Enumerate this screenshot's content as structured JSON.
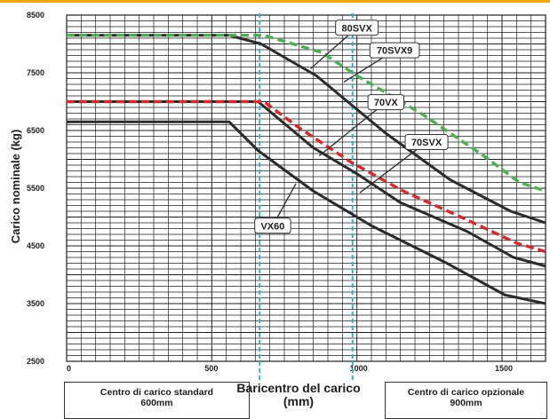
{
  "colors": {
    "top_strip": "#f0a500",
    "grid": "#1e1e1e",
    "solid_series": "#2b2b2b",
    "red_dashed": "#d8282a",
    "green_dashed": "#4caf50",
    "marker_line": "#29a8e0",
    "label_box_stroke": "#333333"
  },
  "chart_data": {
    "type": "line",
    "title": "",
    "ylabel": "Carico nominale (kg)",
    "xlabel": "Baricentro del carico (mm)",
    "xlim": [
      0,
      1650
    ],
    "ylim": [
      2500,
      8500
    ],
    "yticks": [
      2500,
      3500,
      4500,
      5500,
      6500,
      7500,
      8500
    ],
    "xticks": [
      0,
      500,
      1000,
      1500
    ],
    "grid": true,
    "vlines": [
      665,
      985
    ],
    "series": [
      {
        "name": "80SVX",
        "style": "solid",
        "x": [
          0,
          560,
          670,
          860,
          1100,
          1320,
          1530,
          1650
        ],
        "y": [
          8150,
          8150,
          8000,
          7450,
          6450,
          5650,
          5100,
          4900
        ]
      },
      {
        "name": "70SVX9",
        "style": "dashed-green",
        "x": [
          0,
          680,
          880,
          1000,
          1220,
          1440,
          1560,
          1650
        ],
        "y": [
          8150,
          8150,
          7850,
          7450,
          6800,
          6050,
          5600,
          5450
        ]
      },
      {
        "name": "70SVX",
        "style": "dashed-red",
        "x": [
          0,
          680,
          800,
          980,
          1160,
          1380,
          1550,
          1650
        ],
        "y": [
          7000,
          7000,
          6550,
          5950,
          5450,
          4950,
          4550,
          4400
        ]
      },
      {
        "name": "70VX",
        "style": "solid",
        "x": [
          0,
          660,
          850,
          1000,
          1150,
          1380,
          1540,
          1650
        ],
        "y": [
          7000,
          7000,
          6200,
          5750,
          5250,
          4750,
          4300,
          4150
        ]
      },
      {
        "name": "VX60",
        "style": "solid",
        "x": [
          0,
          560,
          660,
          850,
          1050,
          1310,
          1510,
          1650
        ],
        "y": [
          6650,
          6650,
          6150,
          5450,
          4850,
          4200,
          3650,
          3500
        ]
      }
    ],
    "callouts": [
      "80SVX",
      "70SVX9",
      "70VX",
      "70SVX",
      "VX60"
    ],
    "footer": {
      "left": [
        "Centro di carico standard",
        "600mm"
      ],
      "center": [
        "Baricentro del carico",
        "(mm)"
      ],
      "right": [
        "Centro di carico opzionale",
        "900mm"
      ]
    }
  }
}
